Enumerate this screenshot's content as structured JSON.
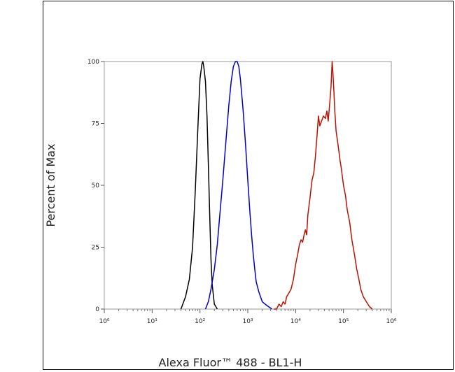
{
  "chart_data": {
    "type": "line",
    "xlabel": "Alexa Fluor™ 488 - BL1-H",
    "ylabel": "Percent of Max",
    "x_scale": "log",
    "xlim": [
      1,
      1000000
    ],
    "ylim": [
      0,
      100
    ],
    "y_ticks": [
      {
        "value": 0,
        "label": "0"
      },
      {
        "value": 25,
        "label": "25"
      },
      {
        "value": 50,
        "label": "50"
      },
      {
        "value": 75,
        "label": "75"
      },
      {
        "value": 100,
        "label": "100"
      }
    ],
    "x_ticks": [
      {
        "value": 1,
        "label": "10⁰"
      },
      {
        "value": 10,
        "label": "10¹"
      },
      {
        "value": 100,
        "label": "10²"
      },
      {
        "value": 1000,
        "label": "10³"
      },
      {
        "value": 10000,
        "label": "10⁴"
      },
      {
        "value": 100000,
        "label": "10⁵"
      },
      {
        "value": 1000000,
        "label": "10⁶"
      }
    ],
    "grid": false,
    "series": [
      {
        "color": "#000000",
        "x": [
          40,
          50,
          60,
          70,
          80,
          90,
          100,
          110,
          115,
          120,
          130,
          140,
          150,
          160,
          170,
          180,
          200,
          230
        ],
        "y": [
          0,
          5,
          12,
          25,
          48,
          72,
          93,
          99,
          100,
          98,
          92,
          78,
          58,
          38,
          20,
          10,
          2,
          0
        ]
      },
      {
        "color": "#0000cc",
        "x": [
          130,
          150,
          170,
          200,
          230,
          260,
          300,
          350,
          400,
          450,
          500,
          550,
          600,
          650,
          700,
          800,
          900,
          1000,
          1100,
          1200,
          1300,
          1400,
          1500,
          1700,
          2000,
          2300,
          2700,
          3200
        ],
        "y": [
          0,
          3,
          8,
          16,
          26,
          38,
          52,
          68,
          82,
          92,
          98,
          100,
          100,
          98,
          93,
          80,
          66,
          52,
          40,
          30,
          22,
          16,
          11,
          7,
          3,
          2,
          1,
          0
        ]
      },
      {
        "color": "#bb1100",
        "x": [
          3500,
          4000,
          4500,
          5000,
          5500,
          6000,
          6500,
          7000,
          8000,
          9000,
          10000,
          11000,
          12000,
          13000,
          14000,
          15000,
          16000,
          17000,
          18000,
          20000,
          22000,
          24000,
          26000,
          28000,
          30000,
          32000,
          35000,
          38000,
          42000,
          45000,
          48000,
          52000,
          55000,
          58000,
          60000,
          63000,
          66000,
          70000,
          75000,
          80000,
          85000,
          90000,
          100000,
          110000,
          120000,
          135000,
          150000,
          170000,
          190000,
          210000,
          230000,
          260000,
          300000,
          350000,
          400000
        ],
        "y": [
          0,
          0,
          2,
          1,
          3,
          2,
          5,
          6,
          8,
          12,
          18,
          22,
          26,
          28,
          27,
          30,
          32,
          30,
          38,
          45,
          52,
          55,
          62,
          70,
          78,
          74,
          76,
          78,
          77,
          80,
          76,
          84,
          90,
          100,
          96,
          88,
          80,
          72,
          68,
          64,
          60,
          57,
          50,
          46,
          40,
          35,
          28,
          22,
          16,
          12,
          8,
          5,
          3,
          1,
          0
        ]
      }
    ]
  }
}
